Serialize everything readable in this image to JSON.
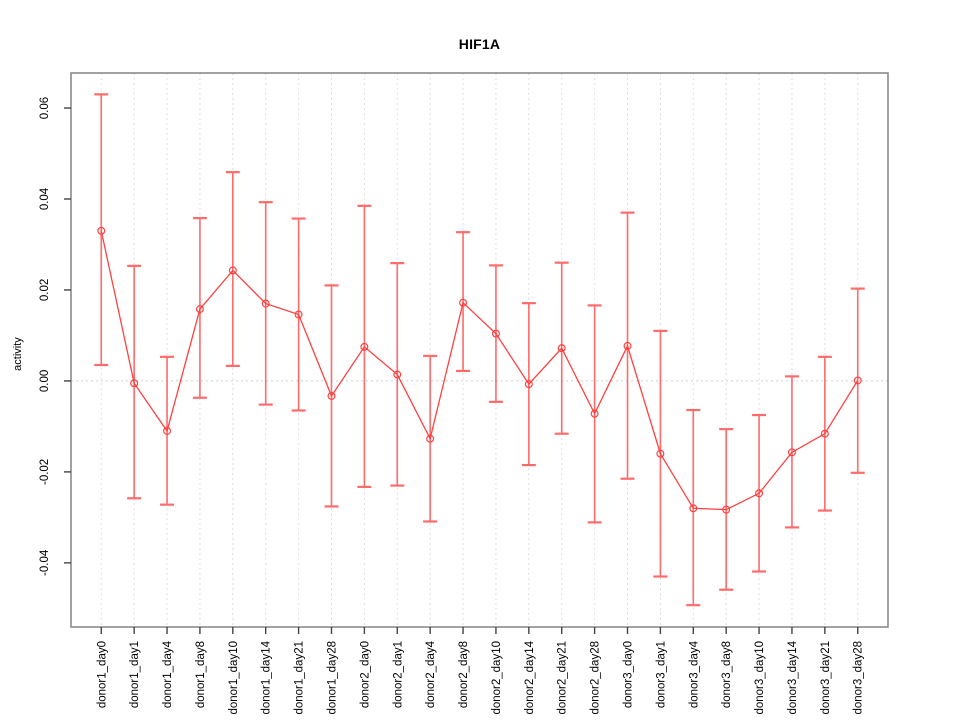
{
  "title": "HIF1A",
  "chart_data": {
    "type": "line",
    "title": "HIF1A",
    "xlabel": "",
    "ylabel": "activity",
    "categories": [
      "donor1_day0",
      "donor1_day1",
      "donor1_day4",
      "donor1_day8",
      "donor1_day10",
      "donor1_day14",
      "donor1_day21",
      "donor1_day28",
      "donor2_day0",
      "donor2_day1",
      "donor2_day4",
      "donor2_day8",
      "donor2_day10",
      "donor2_day14",
      "donor2_day21",
      "donor2_day28",
      "donor3_day0",
      "donor3_day1",
      "donor3_day4",
      "donor3_day8",
      "donor3_day10",
      "donor3_day14",
      "donor3_day21",
      "donor3_day28"
    ],
    "series": [
      {
        "name": "activity",
        "values": [
          0.033,
          -0.0005,
          -0.011,
          0.0158,
          0.0243,
          0.017,
          0.0146,
          -0.0033,
          0.0075,
          0.0014,
          -0.0127,
          0.0172,
          0.0104,
          -0.0007,
          0.0072,
          -0.0072,
          0.0077,
          -0.016,
          -0.028,
          -0.0283,
          -0.0247,
          -0.0157,
          -0.0116,
          0.0001
        ],
        "err_high": [
          0.063,
          0.0253,
          0.0053,
          0.0358,
          0.0459,
          0.0393,
          0.0357,
          0.021,
          0.0385,
          0.0259,
          0.0055,
          0.0327,
          0.0254,
          0.0171,
          0.026,
          0.0166,
          0.037,
          0.011,
          -0.0064,
          -0.0106,
          -0.0075,
          0.001,
          0.0053,
          0.0203
        ],
        "err_low": [
          0.0035,
          -0.0258,
          -0.0272,
          -0.0037,
          0.0033,
          -0.0052,
          -0.0065,
          -0.0276,
          -0.0233,
          -0.023,
          -0.0309,
          0.0022,
          -0.0046,
          -0.0185,
          -0.0116,
          -0.0311,
          -0.0215,
          -0.043,
          -0.0493,
          -0.0459,
          -0.0419,
          -0.0322,
          -0.0285,
          -0.0202
        ]
      }
    ],
    "yticks": [
      0.06,
      0.04,
      0.02,
      0.0,
      -0.02,
      -0.04
    ],
    "ytick_labels": [
      "0.06",
      "0.04",
      "0.02",
      "0.00",
      "-0.02",
      "-0.04"
    ],
    "ylim": [
      -0.0541,
      0.0677
    ],
    "zero_line": 0,
    "grid": "vertical dotted per category; dotted horizontal line at zero",
    "legend": "none",
    "colors": {
      "point": "#ff4040",
      "line": "#ff4040",
      "error_bar": "#ff6b6b",
      "grid": "#dedede",
      "zero_line": "#cfcfcf",
      "frame": "#8a8a8a",
      "tick": "#444444",
      "text": "#000000"
    }
  }
}
